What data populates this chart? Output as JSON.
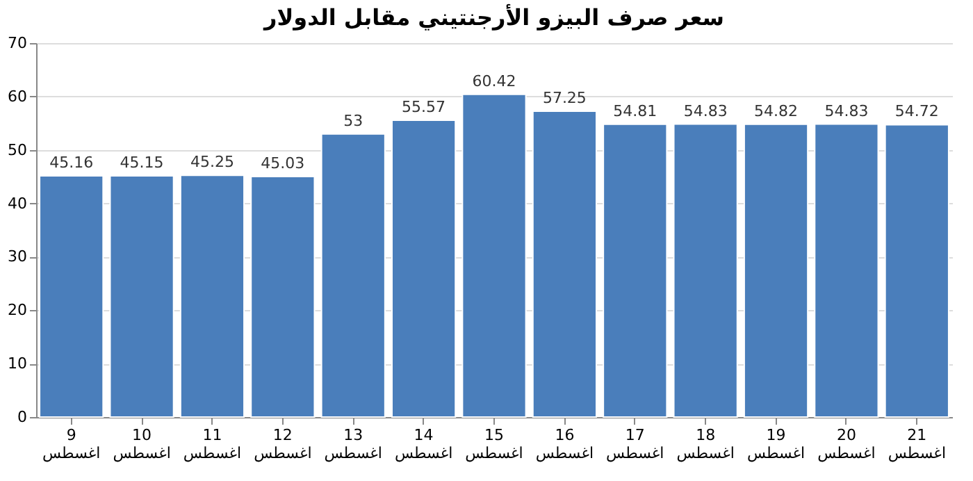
{
  "chart_data": {
    "type": "bar",
    "title": "سعر صرف البيزو الأرجنتيني مقابل الدولار",
    "categories": [
      "9 اغسطس",
      "10 اغسطس",
      "11 اغسطس",
      "12 اغسطس",
      "13 اغسطس",
      "14 اغسطس",
      "15 اغسطس",
      "16 اغسطس",
      "17 اغسطس",
      "18 اغسطس",
      "19 اغسطس",
      "20 اغسطس",
      "21 اغسطس"
    ],
    "values": [
      45.16,
      45.15,
      45.25,
      45.03,
      53,
      55.57,
      60.42,
      57.25,
      54.81,
      54.83,
      54.82,
      54.83,
      54.72
    ],
    "color": "#4a7ebb",
    "ylim": [
      0,
      70
    ],
    "yticks": [
      0,
      10,
      20,
      30,
      40,
      50,
      60,
      70
    ],
    "grid": "y",
    "data_labels": true
  }
}
